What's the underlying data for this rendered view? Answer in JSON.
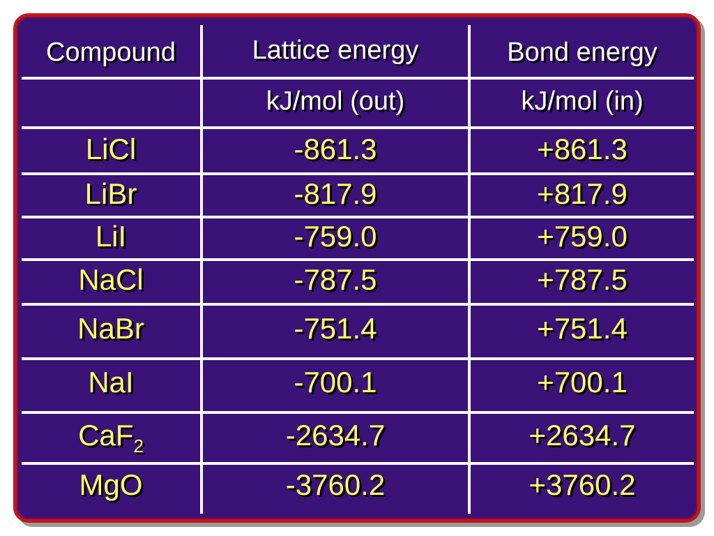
{
  "table": {
    "headers": [
      "Compound",
      "Lattice energy",
      "Bond energy"
    ],
    "units": [
      "",
      "kJ/mol (out)",
      "kJ/mol (in)"
    ],
    "rows": [
      {
        "formula": "LiCl",
        "sub": "",
        "lattice": "-861.3",
        "bond": "+861.3"
      },
      {
        "formula": "LiBr",
        "sub": "",
        "lattice": "-817.9",
        "bond": "+817.9"
      },
      {
        "formula": "LiI",
        "sub": "",
        "lattice": "-759.0",
        "bond": "+759.0"
      },
      {
        "formula": "NaCl",
        "sub": "",
        "lattice": "-787.5",
        "bond": "+787.5"
      },
      {
        "formula": "NaBr",
        "sub": "",
        "lattice": "-751.4",
        "bond": "+751.4"
      },
      {
        "formula": "NaI",
        "sub": "",
        "lattice": "-700.1",
        "bond": "+700.1"
      },
      {
        "formula": "CaF",
        "sub": "2",
        "lattice": "-2634.7",
        "bond": "+2634.7"
      },
      {
        "formula": "MgO",
        "sub": "",
        "lattice": "-3760.2",
        "bond": "+3760.2"
      }
    ]
  },
  "colors": {
    "background": "#3a1278",
    "border": "#c4151c",
    "header_text": "#ffffff",
    "value_text": "#ffff66",
    "grid": "#ffffff"
  }
}
